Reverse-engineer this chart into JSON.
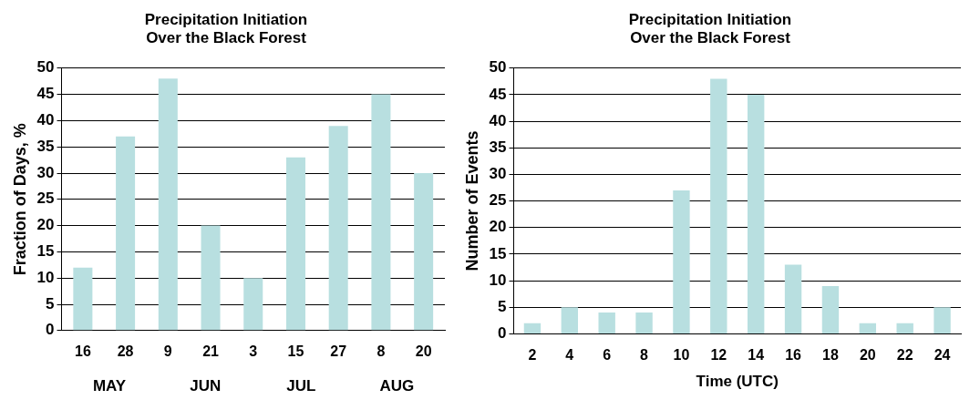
{
  "chart_data": [
    {
      "type": "bar",
      "title": "Precipitation Initiation\nOver the Black Forest",
      "ylabel": "Fraction of Days, %",
      "categories": [
        "16",
        "28",
        "9",
        "21",
        "3",
        "15",
        "27",
        "8",
        "20"
      ],
      "values": [
        12,
        37,
        48,
        20,
        10,
        33,
        39,
        45,
        30
      ],
      "color": "#b8dfe0",
      "ylim": [
        0,
        50
      ],
      "yticks": [
        0,
        5,
        10,
        15,
        20,
        25,
        30,
        35,
        40,
        45,
        50
      ],
      "grid": "y",
      "legend": false,
      "annotations": [
        "MAY",
        "JUN",
        "JUL",
        "AUG"
      ]
    },
    {
      "type": "bar",
      "title": "Precipitation Initiation\nOver the Black Forest",
      "ylabel": "Number of Events",
      "xlabel": "Time (UTC)",
      "categories": [
        "2",
        "4",
        "6",
        "8",
        "10",
        "12",
        "14",
        "16",
        "18",
        "20",
        "22",
        "24"
      ],
      "values": [
        2,
        5,
        4,
        4,
        27,
        48,
        45,
        13,
        9,
        2,
        2,
        5
      ],
      "color": "#b8dfe0",
      "ylim": [
        0,
        50
      ],
      "yticks": [
        0,
        5,
        10,
        15,
        20,
        25,
        30,
        35,
        40,
        45,
        50
      ],
      "grid": "y",
      "legend": false
    }
  ]
}
